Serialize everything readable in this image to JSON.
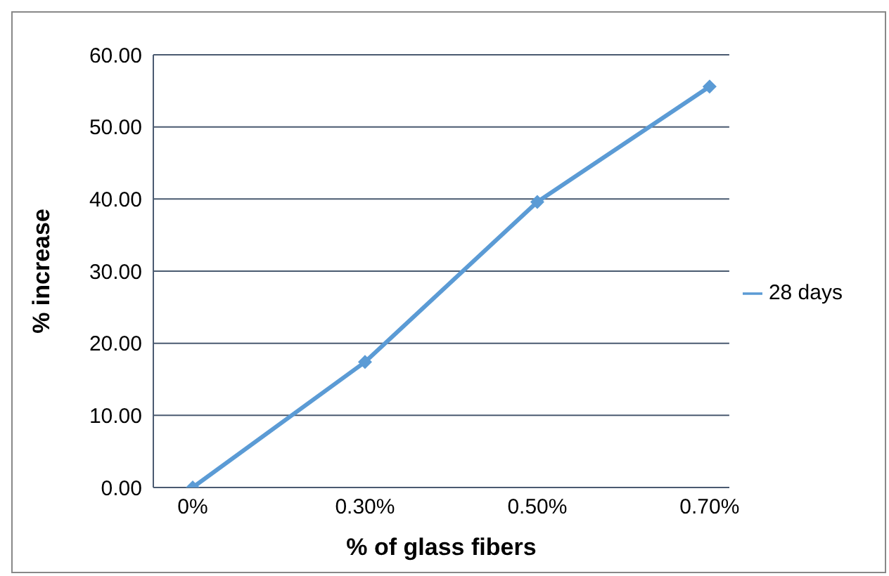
{
  "chart_data": {
    "type": "line",
    "xlabel": "% of glass fibers",
    "ylabel": "% increase",
    "categories": [
      "0%",
      "0.30%",
      "0.50%",
      "0.70%"
    ],
    "series": [
      {
        "name": "28 days",
        "color": "#5b9bd5",
        "values": [
          0,
          17.4,
          39.6,
          55.6
        ]
      }
    ],
    "ylim": [
      0,
      60
    ],
    "yticks": [
      {
        "value": 0,
        "label": "0.00"
      },
      {
        "value": 10,
        "label": "10.00"
      },
      {
        "value": 20,
        "label": "20.00"
      },
      {
        "value": 30,
        "label": "30.00"
      },
      {
        "value": 40,
        "label": "40.00"
      },
      {
        "value": 50,
        "label": "50.00"
      },
      {
        "value": 60,
        "label": "60.00"
      }
    ],
    "grid": "y",
    "legend": "right",
    "marker": "diamond"
  }
}
